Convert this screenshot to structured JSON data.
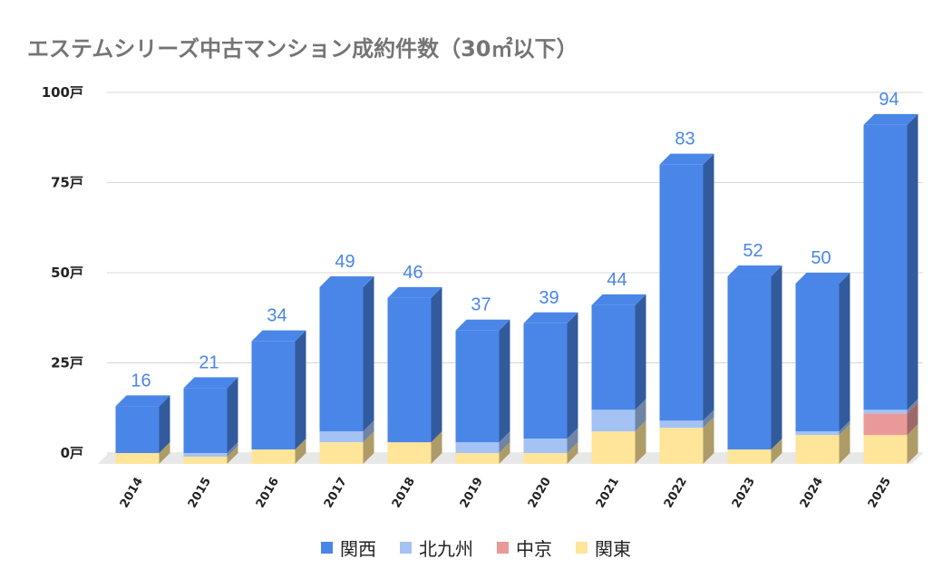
{
  "chart_data": {
    "type": "bar",
    "stacked": true,
    "style": "3d",
    "title": "エステムシリーズ中古マンション成約件数（30㎡以下）",
    "categories": [
      "2014",
      "2015",
      "2016",
      "2017",
      "2018",
      "2019",
      "2020",
      "2021",
      "2022",
      "2023",
      "2024",
      "2025"
    ],
    "series": [
      {
        "name": "関東",
        "color": "#ffe599",
        "values": [
          3,
          2,
          4,
          6,
          6,
          3,
          3,
          9,
          10,
          4,
          8,
          8
        ]
      },
      {
        "name": "中京",
        "color": "#ea9999",
        "values": [
          0,
          0,
          0,
          0,
          0,
          0,
          0,
          0,
          0,
          0,
          0,
          6
        ]
      },
      {
        "name": "北九州",
        "color": "#a4c2f4",
        "values": [
          0,
          1,
          0,
          3,
          0,
          3,
          4,
          6,
          2,
          0,
          1,
          1
        ]
      },
      {
        "name": "関西",
        "color": "#4a86e8",
        "values": [
          13,
          18,
          30,
          40,
          40,
          31,
          32,
          29,
          71,
          48,
          41,
          79
        ]
      }
    ],
    "totals": [
      16,
      21,
      34,
      49,
      46,
      37,
      39,
      44,
      83,
      52,
      50,
      94
    ],
    "yticks": [
      "0戸",
      "25戸",
      "50戸",
      "75戸",
      "100戸"
    ],
    "ylim": [
      0,
      100
    ],
    "grid": true,
    "legend_position": "bottom",
    "legend_order": [
      "関西",
      "北九州",
      "中京",
      "関東"
    ]
  }
}
